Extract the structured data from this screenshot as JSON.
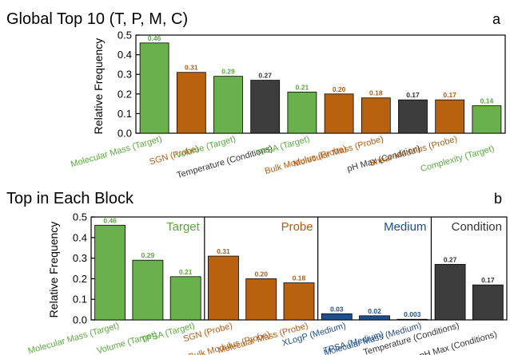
{
  "colors": {
    "Target": "#6ab04c",
    "Probe": "#b8620f",
    "Medium": "#1f4e8c",
    "Condition": "#3d3d3d",
    "TargetText": "#5ba83e",
    "ProbeText": "#b35c10",
    "MediumText": "#1f4e8c",
    "ConditionText": "#333333"
  },
  "chart_data": [
    {
      "id": "a",
      "panel_letter": "a",
      "type": "bar",
      "title": "Global Top 10 (T, P, M, C)",
      "ylabel": "Relative Frequency",
      "ylim": [
        0,
        0.5
      ],
      "yticks": [
        "0.0",
        "0.1",
        "0.2",
        "0.3",
        "0.4",
        "0.5"
      ],
      "bars": [
        {
          "label": "Molecular Mass (Target)",
          "value": 0.46,
          "value_text": "0.46",
          "block": "Target"
        },
        {
          "label": "SGN (Probe)",
          "value": 0.31,
          "value_text": "0.31",
          "block": "Probe"
        },
        {
          "label": "Volume (Target)",
          "value": 0.29,
          "value_text": "0.29",
          "block": "Target"
        },
        {
          "label": "Temperature (Conditions)",
          "value": 0.27,
          "value_text": "0.27",
          "block": "Condition"
        },
        {
          "label": "TPSA (Target)",
          "value": 0.21,
          "value_text": "0.21",
          "block": "Target"
        },
        {
          "label": "Bulk Modulus (Probe)",
          "value": 0.2,
          "value_text": "0.20",
          "block": "Probe"
        },
        {
          "label": "Molecular Mass (Probe)",
          "value": 0.18,
          "value_text": "0.18",
          "block": "Probe"
        },
        {
          "label": "pH Max (Condition)",
          "value": 0.17,
          "value_text": "0.17",
          "block": "Condition"
        },
        {
          "label": "Shear Modulus (Probe)",
          "value": 0.17,
          "value_text": "0.17",
          "block": "Probe"
        },
        {
          "label": "Complexity (Target)",
          "value": 0.14,
          "value_text": "0.14",
          "block": "Target"
        }
      ]
    },
    {
      "id": "b",
      "panel_letter": "b",
      "type": "bar",
      "title": "Top in Each Block",
      "ylabel": "Relative Frequency",
      "ylim": [
        0,
        0.5
      ],
      "yticks": [
        "0.0",
        "0.1",
        "0.2",
        "0.3",
        "0.4",
        "0.5"
      ],
      "blocks": [
        "Target",
        "Probe",
        "Medium",
        "Condition"
      ],
      "bars": [
        {
          "label": "Molecular Mass (Target)",
          "value": 0.46,
          "value_text": "0.46",
          "block": "Target"
        },
        {
          "label": "Volume (Target)",
          "value": 0.29,
          "value_text": "0.29",
          "block": "Target"
        },
        {
          "label": "TPSA (Target)",
          "value": 0.21,
          "value_text": "0.21",
          "block": "Target"
        },
        {
          "label": "SGN (Probe)",
          "value": 0.31,
          "value_text": "0.31",
          "block": "Probe"
        },
        {
          "label": "Bulk Modulus (Probe)",
          "value": 0.2,
          "value_text": "0.20",
          "block": "Probe"
        },
        {
          "label": "Molecular Mass (Probe)",
          "value": 0.18,
          "value_text": "0.18",
          "block": "Probe"
        },
        {
          "label": "XLogP (Medium)",
          "value": 0.03,
          "value_text": "0.03",
          "block": "Medium"
        },
        {
          "label": "TPSA (Medium)",
          "value": 0.02,
          "value_text": "0.02",
          "block": "Medium"
        },
        {
          "label": "Molecular Mass (Medium)",
          "value": 0.003,
          "value_text": "0.003",
          "block": "Medium"
        },
        {
          "label": "Temperature (Conditions)",
          "value": 0.27,
          "value_text": "0.27",
          "block": "Condition"
        },
        {
          "label": "pH Max (Conditions)",
          "value": 0.17,
          "value_text": "0.17",
          "block": "Condition"
        }
      ]
    }
  ]
}
